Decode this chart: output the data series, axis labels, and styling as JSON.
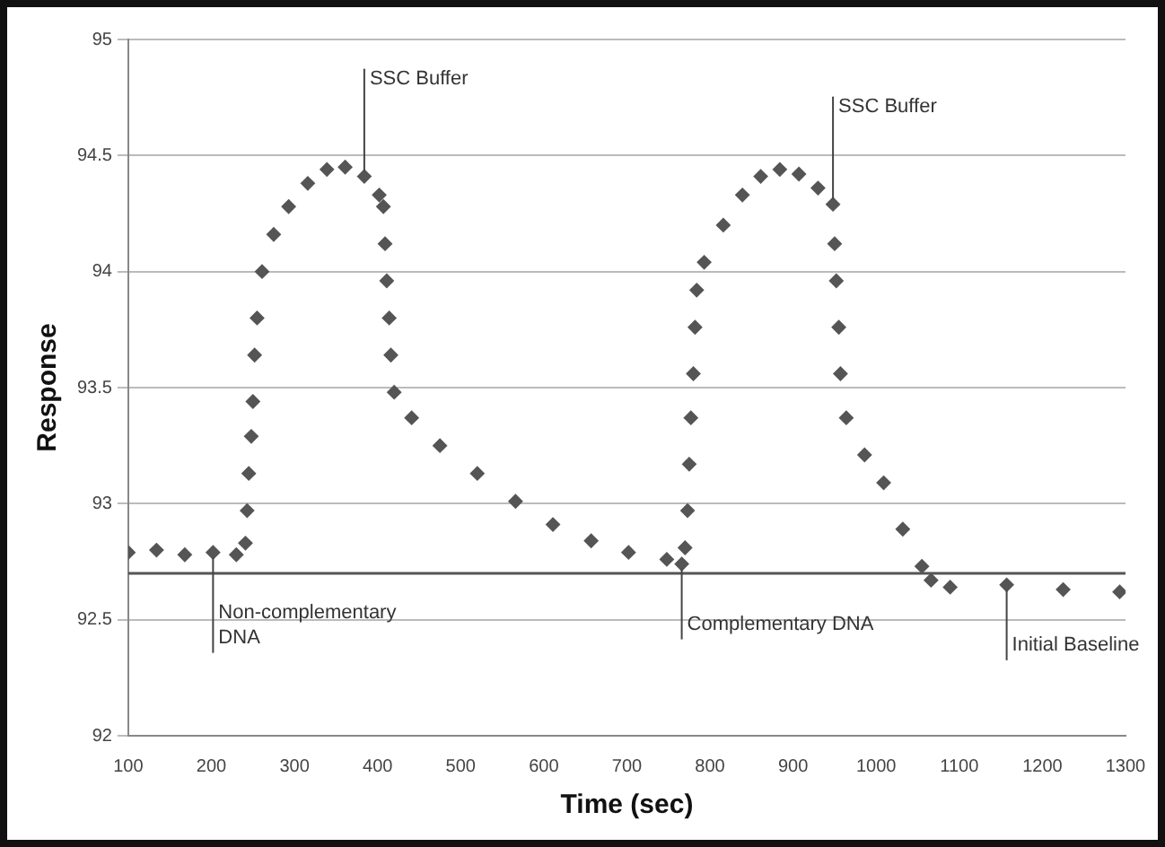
{
  "chart_data": {
    "type": "scatter",
    "xlabel": "Time (sec)",
    "ylabel": "Response",
    "series": [
      {
        "color": "#555555",
        "x": [
          100,
          134,
          168,
          202,
          230,
          241,
          243,
          245,
          248,
          250,
          252,
          255,
          261,
          275,
          293,
          316,
          339,
          361,
          384,
          402,
          407,
          409,
          411,
          414,
          416,
          420,
          441,
          475,
          520,
          566,
          611,
          657,
          702,
          748,
          766,
          770,
          773,
          775,
          777,
          780,
          782,
          784,
          793,
          816,
          839,
          861,
          884,
          907,
          930,
          948,
          950,
          952,
          955,
          957,
          964,
          986,
          1009,
          1032,
          1055,
          1066,
          1089,
          1157,
          1225,
          1293
        ],
        "values": [
          92.79,
          92.8,
          92.78,
          92.79,
          92.78,
          92.83,
          92.97,
          93.13,
          93.29,
          93.44,
          93.64,
          93.8,
          94.0,
          94.16,
          94.28,
          94.38,
          94.44,
          94.45,
          94.41,
          94.33,
          94.28,
          94.12,
          93.96,
          93.8,
          93.64,
          93.48,
          93.37,
          93.25,
          93.13,
          93.01,
          92.91,
          92.84,
          92.79,
          92.76,
          92.74,
          92.81,
          92.97,
          93.17,
          93.37,
          93.56,
          93.76,
          93.92,
          94.04,
          94.2,
          94.33,
          94.41,
          94.44,
          94.42,
          94.36,
          94.29,
          94.12,
          93.96,
          93.76,
          93.56,
          93.37,
          93.21,
          93.09,
          92.89,
          92.73,
          92.67,
          92.64,
          92.65,
          92.63,
          92.62
        ]
      }
    ],
    "xlim": [
      100,
      1300
    ],
    "xticks": [
      100,
      200,
      300,
      400,
      500,
      600,
      700,
      800,
      900,
      1000,
      1100,
      1200,
      1300
    ],
    "ylim": [
      92,
      95
    ],
    "yticks": [
      92,
      92.5,
      93,
      93.5,
      94,
      94.5,
      95
    ],
    "grid": "y",
    "legend": false,
    "marker": "diamond",
    "ref_lines": [
      {
        "axis": "y",
        "value": 92.7,
        "color": "#555555"
      }
    ],
    "annotations": [
      {
        "text": "SSC Buffer",
        "x": 384,
        "y": 94.41
      },
      {
        "text": "SSC Buffer",
        "x": 948,
        "y": 94.29
      },
      {
        "text": "Non-complementary DNA",
        "x": 202,
        "y": 92.79
      },
      {
        "text": "Complementary DNA",
        "x": 766,
        "y": 92.74
      },
      {
        "text": "Initial Baseline",
        "x": 1157,
        "y": 92.65
      }
    ]
  }
}
